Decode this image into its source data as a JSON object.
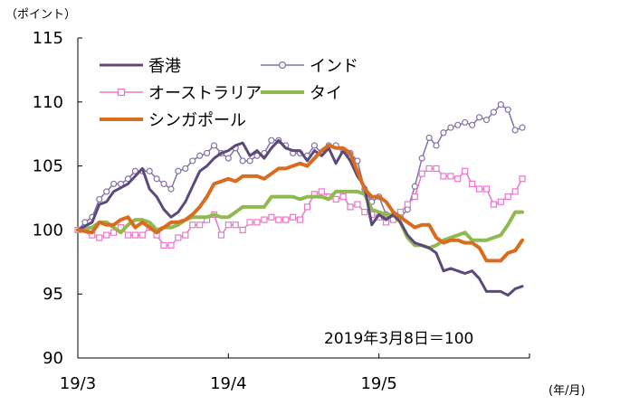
{
  "chart_data": {
    "type": "line",
    "y_unit_label": "（ポイント）",
    "x_unit_label": "(年/月)",
    "annotation": "2019年3月8日＝100",
    "ylim": [
      90,
      115
    ],
    "yticks": [
      90,
      95,
      100,
      105,
      110,
      115
    ],
    "xlim": [
      0,
      63
    ],
    "xticks": [
      {
        "label": "19/3",
        "x": 0
      },
      {
        "label": "19/4",
        "x": 21
      },
      {
        "label": "19/5",
        "x": 42
      }
    ],
    "grid": false,
    "series": [
      {
        "name": "香港",
        "color": "#5b4a7a",
        "marker": "none",
        "width": 3,
        "values": [
          [
            0,
            100.0
          ],
          [
            2,
            100.6
          ],
          [
            3,
            102.0
          ],
          [
            4,
            102.2
          ],
          [
            5,
            103.0
          ],
          [
            7,
            103.6
          ],
          [
            8,
            104.2
          ],
          [
            9,
            104.8
          ],
          [
            10,
            103.2
          ],
          [
            11,
            102.6
          ],
          [
            12,
            101.6
          ],
          [
            13,
            101.0
          ],
          [
            14,
            101.4
          ],
          [
            15,
            102.2
          ],
          [
            16,
            103.4
          ],
          [
            17,
            104.6
          ],
          [
            18,
            105.0
          ],
          [
            19,
            105.6
          ],
          [
            20,
            106.0
          ],
          [
            21,
            106.2
          ],
          [
            22,
            106.6
          ],
          [
            23,
            106.8
          ],
          [
            24,
            105.8
          ],
          [
            25,
            106.2
          ],
          [
            26,
            105.6
          ],
          [
            27,
            106.4
          ],
          [
            28,
            107.0
          ],
          [
            29,
            106.4
          ],
          [
            30,
            106.2
          ],
          [
            31,
            106.2
          ],
          [
            32,
            105.4
          ],
          [
            33,
            106.2
          ],
          [
            34,
            105.8
          ],
          [
            35,
            106.4
          ],
          [
            36,
            105.2
          ],
          [
            37,
            106.2
          ],
          [
            38,
            105.4
          ],
          [
            39,
            104.2
          ],
          [
            40,
            103.4
          ],
          [
            41,
            100.4
          ],
          [
            42,
            101.2
          ],
          [
            43,
            100.8
          ],
          [
            44,
            101.2
          ],
          [
            45,
            100.6
          ],
          [
            46,
            99.6
          ],
          [
            47,
            99.0
          ],
          [
            48,
            98.8
          ],
          [
            49,
            98.6
          ],
          [
            50,
            98.2
          ],
          [
            51,
            96.8
          ],
          [
            52,
            97.0
          ],
          [
            53,
            96.8
          ],
          [
            54,
            96.6
          ],
          [
            55,
            96.8
          ],
          [
            56,
            96.2
          ],
          [
            57,
            95.2
          ],
          [
            58,
            95.2
          ],
          [
            59,
            95.2
          ],
          [
            60,
            94.9
          ],
          [
            61,
            95.4
          ],
          [
            62,
            95.6
          ]
        ]
      },
      {
        "name": "インド",
        "color": "#8472a6",
        "marker": "circle",
        "width": 1.5,
        "values": [
          [
            0,
            100.0
          ],
          [
            1,
            100.6
          ],
          [
            2,
            101.0
          ],
          [
            3,
            102.4
          ],
          [
            4,
            103.0
          ],
          [
            5,
            103.6
          ],
          [
            6,
            103.6
          ],
          [
            7,
            104.0
          ],
          [
            8,
            104.6
          ],
          [
            9,
            104.6
          ],
          [
            10,
            104.6
          ],
          [
            11,
            104.0
          ],
          [
            12,
            103.6
          ],
          [
            13,
            103.2
          ],
          [
            14,
            104.6
          ],
          [
            15,
            104.8
          ],
          [
            16,
            105.4
          ],
          [
            17,
            105.8
          ],
          [
            18,
            106.0
          ],
          [
            19,
            106.6
          ],
          [
            20,
            106.0
          ],
          [
            21,
            105.6
          ],
          [
            22,
            106.4
          ],
          [
            23,
            105.4
          ],
          [
            24,
            105.4
          ],
          [
            25,
            105.8
          ],
          [
            26,
            106.0
          ],
          [
            27,
            107.0
          ],
          [
            28,
            107.0
          ],
          [
            29,
            106.6
          ],
          [
            30,
            106.0
          ],
          [
            31,
            106.0
          ],
          [
            32,
            105.8
          ],
          [
            33,
            106.6
          ],
          [
            34,
            106.0
          ],
          [
            35,
            106.6
          ],
          [
            36,
            106.6
          ],
          [
            37,
            106.2
          ],
          [
            38,
            106.0
          ],
          [
            39,
            105.4
          ],
          [
            40,
            103.2
          ],
          [
            41,
            102.2
          ],
          [
            42,
            102.6
          ],
          [
            43,
            101.2
          ],
          [
            44,
            101.0
          ],
          [
            45,
            101.0
          ],
          [
            46,
            101.6
          ],
          [
            47,
            103.4
          ],
          [
            48,
            105.6
          ],
          [
            49,
            107.2
          ],
          [
            50,
            106.6
          ],
          [
            51,
            107.6
          ],
          [
            52,
            108.0
          ],
          [
            53,
            108.2
          ],
          [
            54,
            108.4
          ],
          [
            55,
            108.2
          ],
          [
            56,
            108.8
          ],
          [
            57,
            108.6
          ],
          [
            58,
            109.2
          ],
          [
            59,
            109.8
          ],
          [
            60,
            109.4
          ],
          [
            61,
            107.8
          ],
          [
            62,
            108.0
          ]
        ]
      },
      {
        "name": "オーストラリア",
        "color": "#e879c9",
        "marker": "square",
        "width": 1.5,
        "values": [
          [
            0,
            100.0
          ],
          [
            2,
            99.6
          ],
          [
            3,
            99.4
          ],
          [
            4,
            99.6
          ],
          [
            5,
            99.8
          ],
          [
            6,
            100.2
          ],
          [
            7,
            99.6
          ],
          [
            8,
            99.6
          ],
          [
            9,
            99.6
          ],
          [
            10,
            100.2
          ],
          [
            11,
            99.6
          ],
          [
            12,
            98.8
          ],
          [
            13,
            98.8
          ],
          [
            14,
            99.4
          ],
          [
            15,
            99.6
          ],
          [
            16,
            100.4
          ],
          [
            17,
            100.4
          ],
          [
            18,
            100.8
          ],
          [
            19,
            101.2
          ],
          [
            20,
            99.6
          ],
          [
            21,
            100.4
          ],
          [
            22,
            100.4
          ],
          [
            23,
            100.0
          ],
          [
            24,
            100.6
          ],
          [
            25,
            100.6
          ],
          [
            26,
            100.8
          ],
          [
            27,
            101.0
          ],
          [
            28,
            100.8
          ],
          [
            29,
            100.8
          ],
          [
            30,
            101.0
          ],
          [
            31,
            100.8
          ],
          [
            32,
            101.8
          ],
          [
            33,
            102.8
          ],
          [
            34,
            103.0
          ],
          [
            35,
            102.6
          ],
          [
            36,
            102.4
          ],
          [
            37,
            102.6
          ],
          [
            38,
            101.8
          ],
          [
            39,
            102.0
          ],
          [
            40,
            101.4
          ],
          [
            41,
            101.2
          ],
          [
            42,
            101.0
          ],
          [
            43,
            100.6
          ],
          [
            44,
            100.8
          ],
          [
            45,
            101.4
          ],
          [
            46,
            102.0
          ],
          [
            47,
            102.6
          ],
          [
            48,
            104.4
          ],
          [
            49,
            104.8
          ],
          [
            50,
            104.8
          ],
          [
            51,
            104.2
          ],
          [
            52,
            104.2
          ],
          [
            53,
            104.0
          ],
          [
            54,
            104.6
          ],
          [
            55,
            103.6
          ],
          [
            56,
            103.2
          ],
          [
            57,
            103.2
          ],
          [
            58,
            102.0
          ],
          [
            59,
            102.2
          ],
          [
            60,
            102.6
          ],
          [
            61,
            103.0
          ],
          [
            62,
            104.0
          ]
        ]
      },
      {
        "name": "タイ",
        "color": "#8fba4f",
        "marker": "none",
        "width": 4,
        "values": [
          [
            0,
            100.0
          ],
          [
            2,
            100.2
          ],
          [
            3,
            100.6
          ],
          [
            4,
            100.6
          ],
          [
            5,
            100.2
          ],
          [
            6,
            99.8
          ],
          [
            7,
            100.4
          ],
          [
            8,
            100.8
          ],
          [
            9,
            100.8
          ],
          [
            10,
            100.6
          ],
          [
            11,
            100.0
          ],
          [
            12,
            100.2
          ],
          [
            13,
            100.2
          ],
          [
            14,
            100.4
          ],
          [
            15,
            100.8
          ],
          [
            16,
            101.0
          ],
          [
            17,
            101.0
          ],
          [
            18,
            101.0
          ],
          [
            19,
            101.2
          ],
          [
            20,
            101.0
          ],
          [
            21,
            101.0
          ],
          [
            22,
            101.4
          ],
          [
            23,
            101.8
          ],
          [
            24,
            101.8
          ],
          [
            25,
            101.8
          ],
          [
            26,
            101.8
          ],
          [
            27,
            102.6
          ],
          [
            28,
            102.6
          ],
          [
            29,
            102.6
          ],
          [
            30,
            102.6
          ],
          [
            31,
            102.4
          ],
          [
            32,
            102.6
          ],
          [
            33,
            102.6
          ],
          [
            34,
            102.6
          ],
          [
            35,
            102.4
          ],
          [
            36,
            103.0
          ],
          [
            37,
            103.0
          ],
          [
            38,
            103.0
          ],
          [
            39,
            103.0
          ],
          [
            40,
            102.8
          ],
          [
            41,
            101.6
          ],
          [
            42,
            101.4
          ],
          [
            43,
            101.2
          ],
          [
            44,
            101.2
          ],
          [
            45,
            100.6
          ],
          [
            46,
            99.4
          ],
          [
            47,
            98.8
          ],
          [
            48,
            98.8
          ],
          [
            49,
            98.6
          ],
          [
            50,
            98.8
          ],
          [
            51,
            99.2
          ],
          [
            52,
            99.4
          ],
          [
            53,
            99.6
          ],
          [
            54,
            99.8
          ],
          [
            55,
            99.2
          ],
          [
            56,
            99.2
          ],
          [
            57,
            99.2
          ],
          [
            58,
            99.4
          ],
          [
            59,
            99.6
          ],
          [
            60,
            100.4
          ],
          [
            61,
            101.4
          ],
          [
            62,
            101.4
          ]
        ]
      },
      {
        "name": "シンガポール",
        "color": "#d96d1f",
        "marker": "none",
        "width": 4,
        "values": [
          [
            0,
            100.0
          ],
          [
            2,
            99.8
          ],
          [
            3,
            100.6
          ],
          [
            4,
            100.4
          ],
          [
            5,
            100.4
          ],
          [
            6,
            100.8
          ],
          [
            7,
            101.0
          ],
          [
            8,
            100.2
          ],
          [
            9,
            100.6
          ],
          [
            10,
            100.2
          ],
          [
            11,
            99.8
          ],
          [
            12,
            100.2
          ],
          [
            13,
            100.6
          ],
          [
            14,
            100.6
          ],
          [
            15,
            100.8
          ],
          [
            16,
            101.2
          ],
          [
            17,
            101.8
          ],
          [
            18,
            102.6
          ],
          [
            19,
            103.6
          ],
          [
            20,
            103.8
          ],
          [
            21,
            104.0
          ],
          [
            22,
            103.8
          ],
          [
            23,
            104.2
          ],
          [
            24,
            104.2
          ],
          [
            25,
            104.2
          ],
          [
            26,
            104.0
          ],
          [
            27,
            104.4
          ],
          [
            28,
            104.8
          ],
          [
            29,
            104.8
          ],
          [
            30,
            105.0
          ],
          [
            31,
            105.2
          ],
          [
            32,
            105.0
          ],
          [
            33,
            105.6
          ],
          [
            34,
            106.2
          ],
          [
            35,
            106.6
          ],
          [
            36,
            106.4
          ],
          [
            37,
            106.4
          ],
          [
            38,
            106.0
          ],
          [
            39,
            104.6
          ],
          [
            40,
            103.2
          ],
          [
            41,
            102.6
          ],
          [
            42,
            102.6
          ],
          [
            43,
            102.2
          ],
          [
            44,
            101.4
          ],
          [
            45,
            101.0
          ],
          [
            46,
            100.6
          ],
          [
            47,
            100.2
          ],
          [
            48,
            100.4
          ],
          [
            49,
            100.4
          ],
          [
            50,
            99.4
          ],
          [
            51,
            99.0
          ],
          [
            52,
            99.2
          ],
          [
            53,
            99.2
          ],
          [
            54,
            99.0
          ],
          [
            55,
            99.0
          ],
          [
            56,
            98.6
          ],
          [
            57,
            97.6
          ],
          [
            58,
            97.6
          ],
          [
            59,
            97.6
          ],
          [
            60,
            98.2
          ],
          [
            61,
            98.4
          ],
          [
            62,
            99.2
          ]
        ]
      }
    ]
  }
}
